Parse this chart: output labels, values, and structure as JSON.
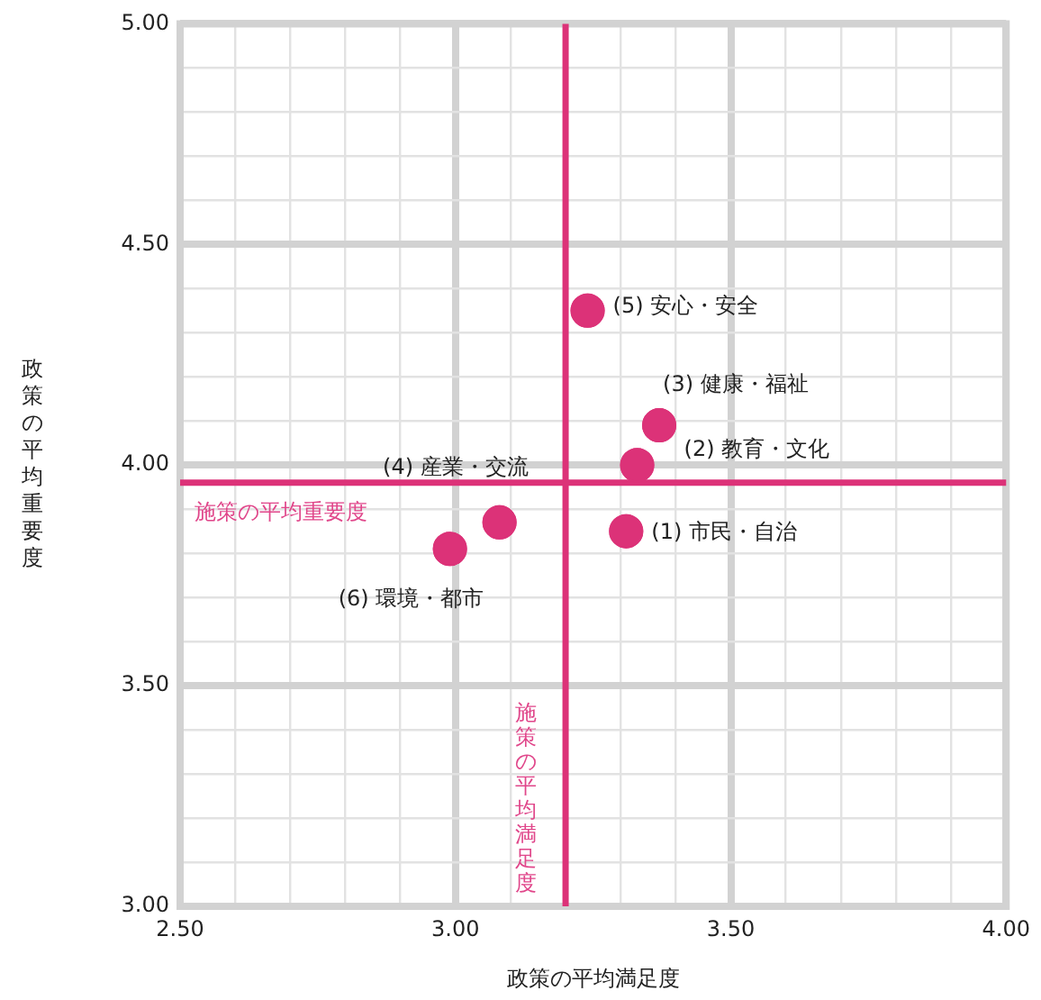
{
  "chart_data": {
    "type": "scatter",
    "xlabel": "政策の平均満足度",
    "ylabel": "政策の平均重要度",
    "x": [
      3.31,
      3.33,
      3.37,
      3.08,
      3.24,
      2.99
    ],
    "series": [
      {
        "color": "#dc3278",
        "values": [
          3.85,
          4.0,
          4.09,
          3.87,
          4.35,
          3.81
        ]
      }
    ],
    "marker": "circle",
    "annotations": [
      {
        "text": "(1) 市民・自治",
        "x": 3.31,
        "y": 3.85
      },
      {
        "text": "(2) 教育・文化",
        "x": 3.33,
        "y": 4.0
      },
      {
        "text": "(3) 健康・福祉",
        "x": 3.37,
        "y": 4.09
      },
      {
        "text": "(4) 産業・交流",
        "x": 3.08,
        "y": 3.87
      },
      {
        "text": "(5) 安心・安全",
        "x": 3.24,
        "y": 4.35
      },
      {
        "text": "(6) 環境・都市",
        "x": 2.99,
        "y": 3.81
      }
    ],
    "ref_lines": [
      {
        "axis": "x",
        "value": 3.2,
        "label": "施策の平均満足度",
        "color": "#dc3278"
      },
      {
        "axis": "y",
        "value": 3.96,
        "label": "施策の平均重要度",
        "color": "#dc3278"
      }
    ],
    "xlim": [
      2.5,
      4.0
    ],
    "xticks": [
      {
        "value": 2.5,
        "label": "2.50"
      },
      {
        "value": 2.6,
        "label": null
      },
      {
        "value": 2.7,
        "label": null
      },
      {
        "value": 2.8,
        "label": null
      },
      {
        "value": 2.9,
        "label": null
      },
      {
        "value": 3.0,
        "label": "3.00"
      },
      {
        "value": 3.1,
        "label": null
      },
      {
        "value": 3.2,
        "label": null
      },
      {
        "value": 3.3,
        "label": null
      },
      {
        "value": 3.4,
        "label": null
      },
      {
        "value": 3.5,
        "label": "3.50"
      },
      {
        "value": 3.6,
        "label": null
      },
      {
        "value": 3.7,
        "label": null
      },
      {
        "value": 3.8,
        "label": null
      },
      {
        "value": 3.9,
        "label": null
      },
      {
        "value": 4.0,
        "label": "4.00"
      }
    ],
    "ylim": [
      3.0,
      5.0
    ],
    "yticks": [
      {
        "value": 3.0,
        "label": "3.00"
      },
      {
        "value": 3.1,
        "label": null
      },
      {
        "value": 3.2,
        "label": null
      },
      {
        "value": 3.3,
        "label": null
      },
      {
        "value": 3.4,
        "label": null
      },
      {
        "value": 3.5,
        "label": "3.50"
      },
      {
        "value": 3.6,
        "label": null
      },
      {
        "value": 3.7,
        "label": null
      },
      {
        "value": 3.8,
        "label": null
      },
      {
        "value": 3.9,
        "label": null
      },
      {
        "value": 4.0,
        "label": "4.00"
      },
      {
        "value": 4.1,
        "label": null
      },
      {
        "value": 4.2,
        "label": null
      },
      {
        "value": 4.3,
        "label": null
      },
      {
        "value": 4.4,
        "label": null
      },
      {
        "value": 4.5,
        "label": "4.50"
      },
      {
        "value": 4.6,
        "label": null
      },
      {
        "value": 4.7,
        "label": null
      },
      {
        "value": 4.8,
        "label": null
      },
      {
        "value": 4.9,
        "label": null
      },
      {
        "value": 5.0,
        "label": "5.00"
      }
    ],
    "grid": true
  }
}
